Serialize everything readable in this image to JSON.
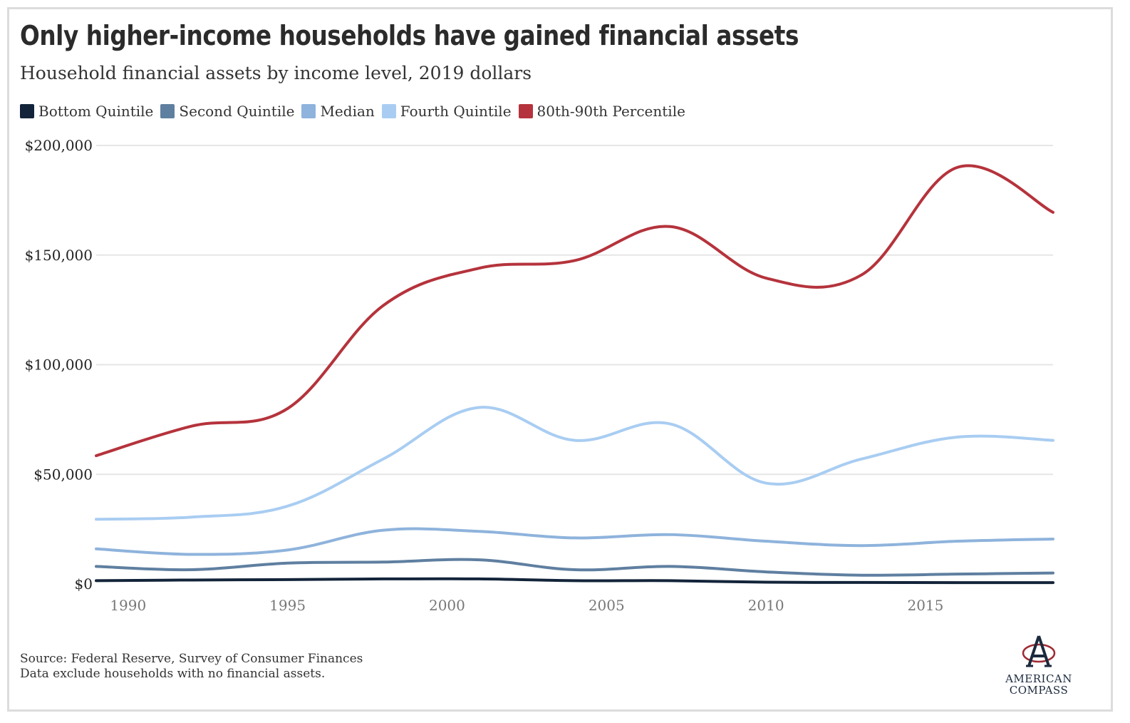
{
  "title": "Only higher-income households have gained financial assets",
  "subtitle": "Household financial assets by income level, 2019 dollars",
  "source_line1": "Source: Federal Reserve, Survey of Consumer Finances",
  "source_line2": "Data exclude households with no financial assets.",
  "logo": {
    "line1": "AMERICAN",
    "line2": "COMPASS",
    "icon": "compass-a-logo-icon"
  },
  "chart_data": {
    "type": "line",
    "title": "Only higher-income households have gained financial assets",
    "subtitle": "Household financial assets by income level, 2019 dollars",
    "xlabel": "",
    "ylabel": "",
    "xlim": [
      1989,
      2019
    ],
    "ylim": [
      0,
      200000
    ],
    "x_ticks": [
      1990,
      1995,
      2000,
      2005,
      2010,
      2015
    ],
    "y_ticks": [
      0,
      50000,
      100000,
      150000,
      200000
    ],
    "y_tick_labels": [
      "$0",
      "$50,000",
      "$100,000",
      "$150,000",
      "$200,000"
    ],
    "grid": true,
    "legend_position": "top-left",
    "x": [
      1989,
      1992,
      1995,
      1998,
      2001,
      2004,
      2007,
      2010,
      2013,
      2016,
      2019
    ],
    "series": [
      {
        "name": "Bottom Quintile",
        "color": "#13243a",
        "values": [
          1500,
          1800,
          2000,
          2300,
          2300,
          1500,
          1500,
          800,
          700,
          600,
          600
        ]
      },
      {
        "name": "Second Quintile",
        "color": "#5f7fa0",
        "values": [
          8000,
          6500,
          9500,
          10000,
          11000,
          6500,
          8000,
          5500,
          4000,
          4500,
          5000
        ]
      },
      {
        "name": "Median",
        "color": "#8eb3dc",
        "values": [
          16000,
          13500,
          15500,
          24500,
          24000,
          21000,
          22500,
          19500,
          17500,
          19500,
          20500
        ]
      },
      {
        "name": "Fourth Quintile",
        "color": "#a9cdf2",
        "values": [
          29500,
          30500,
          35500,
          57000,
          80500,
          65500,
          73000,
          46000,
          57000,
          67000,
          65500
        ]
      },
      {
        "name": "80th-90th Percentile",
        "color": "#b5333c",
        "values": [
          58500,
          72000,
          80000,
          127000,
          144000,
          147500,
          163000,
          139500,
          141000,
          190000,
          169500
        ]
      }
    ]
  }
}
